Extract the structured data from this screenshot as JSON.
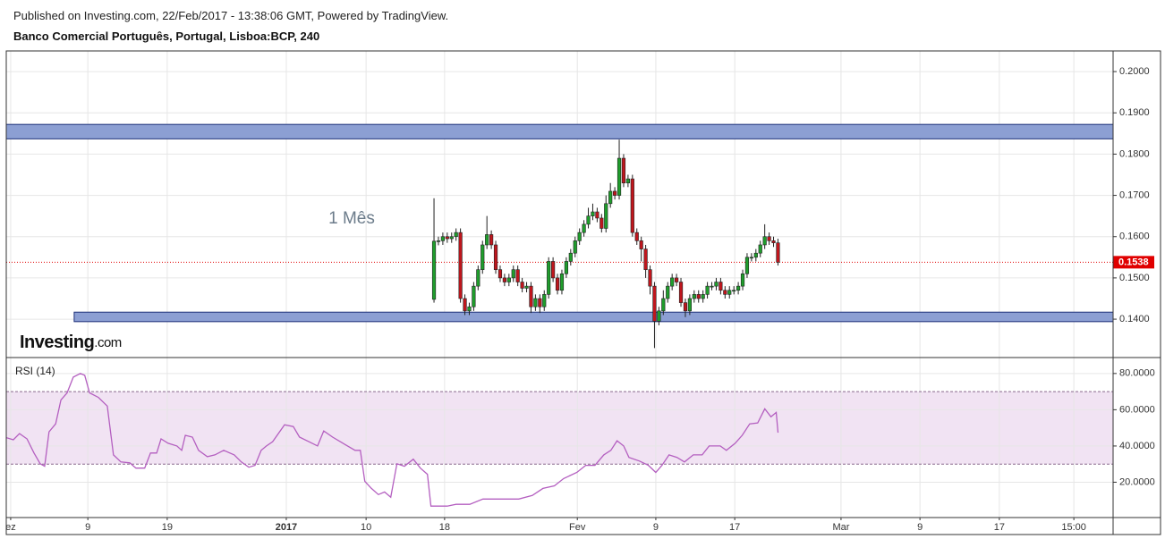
{
  "chart_data": {
    "type": "candlestick",
    "source": "Published on Investing.com, 22/Feb/2017 - 13:38:06 GMT, Powered by TradingView.",
    "title": "Banco Comercial Português, Portugal, Lisboa:BCP, 240",
    "annotation": "1 Mês",
    "logo": {
      "brand": "Investing",
      "suffix": ".com"
    },
    "up_color": "#1f9e2c",
    "down_color": "#c0161d",
    "grid": true,
    "xlim": [
      0,
      251
    ],
    "xticks": [
      {
        "value": 1,
        "label": "ez"
      },
      {
        "value": 18.5,
        "label": "9"
      },
      {
        "value": 36.5,
        "label": "19"
      },
      {
        "value": 63.5,
        "label": "2017",
        "bold": true
      },
      {
        "value": 81.6,
        "label": "10"
      },
      {
        "value": 99.4,
        "label": "18"
      },
      {
        "value": 129.5,
        "label": "Fev"
      },
      {
        "value": 147.3,
        "label": "9"
      },
      {
        "value": 165.2,
        "label": "17"
      },
      {
        "value": 189.3,
        "label": "Mar"
      },
      {
        "value": 207.2,
        "label": "9"
      },
      {
        "value": 225.2,
        "label": "17"
      },
      {
        "value": 242.1,
        "label": "15:00"
      }
    ],
    "ylim": [
      0.1307,
      0.205
    ],
    "yticks": [
      {
        "value": 0.14,
        "label": "0.1400"
      },
      {
        "value": 0.15,
        "label": "0.1500"
      },
      {
        "value": 0.16,
        "label": "0.1600"
      },
      {
        "value": 0.17,
        "label": "0.1700"
      },
      {
        "value": 0.18,
        "label": "0.1800"
      },
      {
        "value": 0.19,
        "label": "0.1900"
      },
      {
        "value": 0.2,
        "label": "0.2000"
      }
    ],
    "last_price": 0.1538,
    "last_price_color": "#e00000",
    "zones": [
      {
        "from": 0.1837,
        "to": 0.1872,
        "start": 0,
        "color": "#8c9fd3",
        "border": "#1c2f78"
      },
      {
        "from": 0.1394,
        "to": 0.1417,
        "start": 15.4,
        "color": "#8c9fd3",
        "border": "#1c2f78"
      }
    ],
    "candles": {
      "x": [
        97,
        98,
        99,
        100,
        101,
        102,
        103,
        104,
        105,
        106,
        107,
        108,
        109,
        110,
        111,
        112,
        113,
        114,
        115,
        116,
        117,
        118,
        119,
        120,
        121,
        122,
        123,
        124,
        125,
        126,
        127,
        128,
        129,
        130,
        131,
        132,
        133,
        134,
        135,
        136,
        137,
        138,
        139,
        140,
        141,
        142,
        143,
        144,
        145,
        146,
        147,
        148,
        149,
        150,
        151,
        152,
        153,
        154,
        155,
        156,
        157,
        158,
        159,
        160,
        161,
        162,
        163,
        164,
        165,
        166,
        167,
        168,
        169,
        170,
        171,
        172,
        173,
        174,
        175
      ],
      "open": [
        0.1448,
        0.1589,
        0.159,
        0.16,
        0.1595,
        0.16,
        0.161,
        0.145,
        0.142,
        0.143,
        0.148,
        0.152,
        0.158,
        0.1605,
        0.158,
        0.152,
        0.15,
        0.149,
        0.15,
        0.152,
        0.149,
        0.1475,
        0.148,
        0.143,
        0.145,
        0.143,
        0.146,
        0.154,
        0.15,
        0.147,
        0.151,
        0.154,
        0.156,
        0.159,
        0.161,
        0.163,
        0.165,
        0.166,
        0.1645,
        0.162,
        0.168,
        0.171,
        0.17,
        0.179,
        0.173,
        0.174,
        0.161,
        0.159,
        0.157,
        0.152,
        0.148,
        0.1395,
        0.142,
        0.145,
        0.148,
        0.15,
        0.149,
        0.144,
        0.142,
        0.145,
        0.146,
        0.145,
        0.146,
        0.148,
        0.148,
        0.149,
        0.147,
        0.146,
        0.147,
        0.147,
        0.148,
        0.151,
        0.155,
        0.155,
        0.156,
        0.158,
        0.16,
        0.159,
        0.1585
      ],
      "high": [
        0.1693,
        0.16,
        0.161,
        0.161,
        0.161,
        0.162,
        0.162,
        0.146,
        0.144,
        0.149,
        0.153,
        0.159,
        0.165,
        0.1615,
        0.159,
        0.153,
        0.151,
        0.151,
        0.153,
        0.153,
        0.15,
        0.149,
        0.149,
        0.146,
        0.146,
        0.147,
        0.155,
        0.155,
        0.151,
        0.152,
        0.155,
        0.157,
        0.16,
        0.162,
        0.164,
        0.167,
        0.168,
        0.167,
        0.1655,
        0.17,
        0.173,
        0.172,
        0.1835,
        0.18,
        0.175,
        0.175,
        0.162,
        0.16,
        0.158,
        0.153,
        0.149,
        0.143,
        0.147,
        0.149,
        0.151,
        0.151,
        0.15,
        0.145,
        0.146,
        0.147,
        0.147,
        0.147,
        0.149,
        0.149,
        0.15,
        0.15,
        0.148,
        0.148,
        0.148,
        0.149,
        0.152,
        0.156,
        0.156,
        0.157,
        0.159,
        0.163,
        0.161,
        0.16,
        0.1595
      ],
      "low": [
        0.144,
        0.1579,
        0.158,
        0.1585,
        0.1585,
        0.159,
        0.144,
        0.141,
        0.141,
        0.142,
        0.147,
        0.151,
        0.157,
        0.157,
        0.151,
        0.149,
        0.148,
        0.148,
        0.149,
        0.148,
        0.1465,
        0.1465,
        0.1415,
        0.142,
        0.1415,
        0.142,
        0.145,
        0.149,
        0.146,
        0.146,
        0.15,
        0.153,
        0.155,
        0.158,
        0.16,
        0.162,
        0.164,
        0.1635,
        0.161,
        0.161,
        0.167,
        0.169,
        0.169,
        0.172,
        0.172,
        0.16,
        0.158,
        0.154,
        0.15,
        0.146,
        0.133,
        0.1385,
        0.141,
        0.144,
        0.147,
        0.148,
        0.143,
        0.1405,
        0.141,
        0.144,
        0.144,
        0.144,
        0.145,
        0.147,
        0.147,
        0.146,
        0.145,
        0.145,
        0.146,
        0.146,
        0.147,
        0.15,
        0.154,
        0.154,
        0.155,
        0.157,
        0.158,
        0.1575,
        0.153
      ],
      "close": [
        0.1589,
        0.159,
        0.16,
        0.1595,
        0.16,
        0.161,
        0.145,
        0.142,
        0.143,
        0.148,
        0.152,
        0.158,
        0.1605,
        0.158,
        0.152,
        0.15,
        0.149,
        0.15,
        0.152,
        0.149,
        0.1475,
        0.148,
        0.143,
        0.145,
        0.143,
        0.146,
        0.154,
        0.15,
        0.147,
        0.151,
        0.154,
        0.156,
        0.159,
        0.161,
        0.163,
        0.165,
        0.166,
        0.1645,
        0.162,
        0.168,
        0.171,
        0.17,
        0.179,
        0.173,
        0.174,
        0.161,
        0.159,
        0.157,
        0.152,
        0.148,
        0.1395,
        0.142,
        0.145,
        0.148,
        0.15,
        0.149,
        0.144,
        0.142,
        0.145,
        0.146,
        0.145,
        0.146,
        0.148,
        0.148,
        0.149,
        0.147,
        0.146,
        0.147,
        0.147,
        0.148,
        0.151,
        0.155,
        0.155,
        0.156,
        0.158,
        0.16,
        0.159,
        0.1585,
        0.1538
      ]
    },
    "rsi": {
      "name": "RSI (14)",
      "color": "#b45fc0",
      "band_color": "#f1e3f3",
      "bands": [
        30,
        70
      ],
      "ylim": [
        1,
        88.8
      ],
      "yticks": [
        {
          "value": 20,
          "label": "20.0000"
        },
        {
          "value": 40,
          "label": "40.0000"
        },
        {
          "value": 60,
          "label": "60.0000"
        },
        {
          "value": 80,
          "label": "80.0000"
        }
      ],
      "x": [
        0,
        1.6,
        3,
        4.7,
        6.3,
        7.7,
        8.7,
        9.7,
        11.2,
        12.4,
        13.8,
        15.2,
        16.8,
        17.8,
        18.9,
        20.9,
        22.9,
        24.3,
        26,
        28,
        29.4,
        31.4,
        32.7,
        34.1,
        35.1,
        36.7,
        38.7,
        39.8,
        40.6,
        42.2,
        43.6,
        45.6,
        47.3,
        49.3,
        51.7,
        53.3,
        55,
        56.4,
        57.8,
        59,
        60.4,
        63.1,
        65.1,
        66.5,
        68.6,
        70.6,
        72,
        74,
        76.7,
        79.1,
        80.3,
        81.3,
        82.8,
        84.4,
        85.8,
        87.2,
        88.6,
        90.3,
        92.3,
        93.9,
        95.5,
        96.3,
        100,
        102,
        105.1,
        108.1,
        112.2,
        116.2,
        119.3,
        121.7,
        124.3,
        126.4,
        129.4,
        131.4,
        133.5,
        135.5,
        137.1,
        138.5,
        140,
        141.2,
        143.6,
        145.6,
        147.3,
        148.7,
        150.3,
        152.1,
        153.8,
        155.8,
        157.8,
        159.4,
        161.9,
        163.3,
        165.3,
        166.9,
        168.6,
        170.4,
        172,
        173.4,
        174.6,
        175
      ],
      "values": [
        44.6,
        43.4,
        46.8,
        43.9,
        36.1,
        30.2,
        28.8,
        47.8,
        52.2,
        65.4,
        69.3,
        78,
        80,
        79,
        69.3,
        66.8,
        62,
        35.1,
        31.2,
        30.7,
        27.8,
        27.8,
        36.1,
        36.1,
        43.9,
        41.5,
        40,
        37.6,
        45.9,
        44.9,
        37.6,
        34.1,
        35.1,
        37.6,
        35.1,
        31.2,
        28.3,
        29.3,
        37.6,
        40,
        42.4,
        51.7,
        50.7,
        44.9,
        42.4,
        40,
        48.3,
        44.9,
        41,
        37.6,
        37.6,
        20.5,
        16.6,
        13.2,
        14.6,
        11.7,
        30.2,
        28.8,
        32.7,
        27.8,
        24.4,
        6.8,
        6.8,
        7.8,
        7.8,
        10.7,
        10.7,
        10.7,
        12.7,
        16.6,
        18,
        22,
        25.4,
        29.3,
        29.3,
        35.1,
        37.6,
        42.9,
        40,
        33.7,
        31.7,
        29.3,
        25.4,
        29.3,
        35.1,
        33.7,
        31.2,
        35.1,
        35.1,
        40,
        40,
        37.6,
        41.5,
        45.9,
        52.2,
        52.7,
        60.5,
        56.1,
        58.5,
        47.3
      ]
    }
  }
}
